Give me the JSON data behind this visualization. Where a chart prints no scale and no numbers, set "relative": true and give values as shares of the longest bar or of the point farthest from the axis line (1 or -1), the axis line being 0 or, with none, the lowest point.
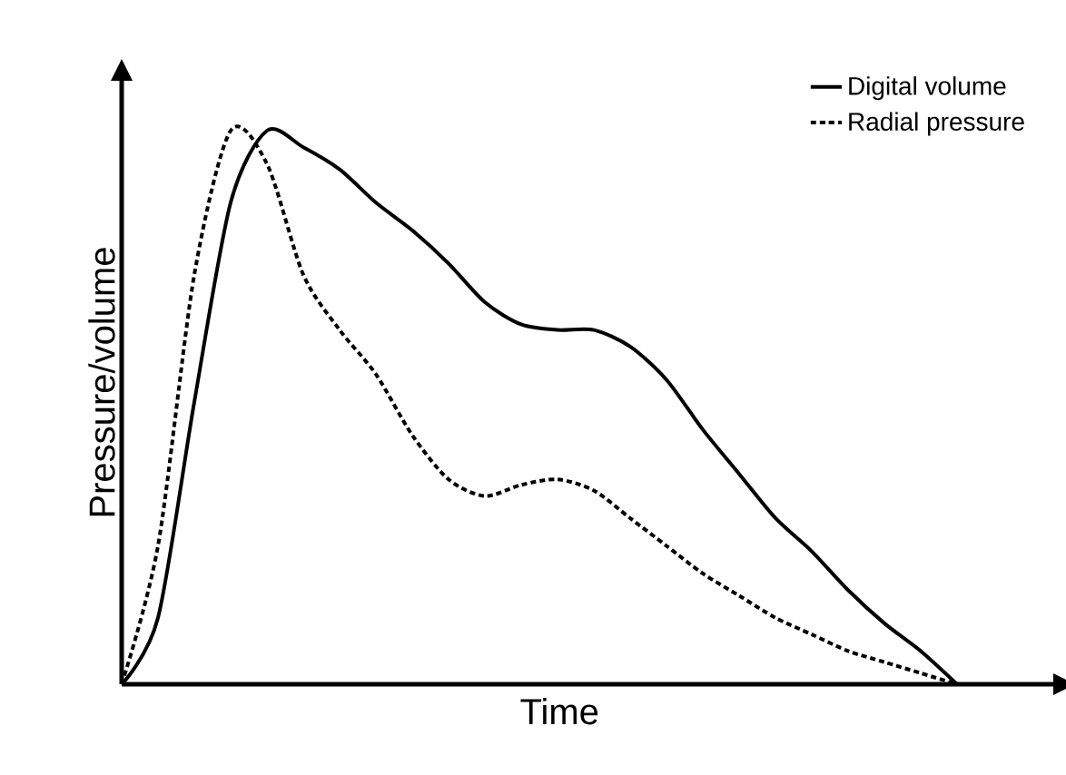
{
  "chart_data": {
    "type": "line",
    "relative": true,
    "xlabel": "Time",
    "ylabel": "Pressure/volume",
    "legend": "top right",
    "categories": [
      null,
      null,
      null,
      null,
      null,
      null,
      null,
      null,
      null,
      null,
      null,
      null,
      null,
      null,
      null,
      null,
      null,
      null,
      null,
      null,
      null,
      null,
      null,
      null
    ],
    "series": [
      {
        "name": "Digital volume",
        "color": "#000000",
        "line_style": "solid",
        "values": [
          0,
          0.12,
          0.51,
          0.87,
          1,
          0.97,
          0.93,
          0.87,
          0.82,
          0.76,
          0.69,
          0.65,
          0.64,
          0.64,
          0.61,
          0.55,
          0.46,
          0.38,
          0.3,
          0.24,
          0.17,
          0.11,
          0.06,
          0
        ]
      },
      {
        "name": "Radial pressure",
        "color": "#000000",
        "line_style": "dashed",
        "values": [
          0,
          0.25,
          0.74,
          1,
          0.94,
          0.74,
          0.64,
          0.56,
          0.45,
          0.37,
          0.34,
          0.36,
          0.37,
          0.35,
          0.3,
          0.25,
          0.2,
          0.16,
          0.12,
          0.09,
          0.06,
          0.04,
          0.02,
          0
        ]
      }
    ]
  }
}
